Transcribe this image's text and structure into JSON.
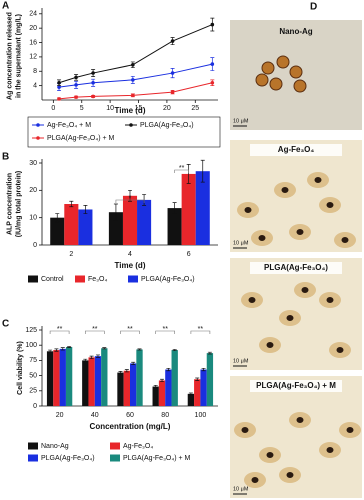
{
  "chart_data": [
    {
      "type": "line",
      "label": "A",
      "ylabel": [
        "Ag concentration released",
        "in the supernatant (mg/L)"
      ],
      "xlabel": "Time (d)",
      "x": [
        1,
        4,
        7,
        14,
        21,
        28
      ],
      "xlim": [
        -2,
        29
      ],
      "xticks": [
        0,
        5,
        10,
        15,
        20,
        25
      ],
      "ylim": [
        0,
        24.5
      ],
      "yticks": [
        4,
        8,
        12,
        16,
        20,
        24
      ],
      "series": [
        {
          "name": "Ag-Fe₃O₄ + M",
          "color": "#1a2fe0",
          "values": [
            3.6,
            4.2,
            4.8,
            5.6,
            7.5,
            10
          ],
          "errors": [
            1,
            1,
            1,
            1,
            1.3,
            1.8
          ]
        },
        {
          "name": "PLGA(Ag-Fe₃O₄)",
          "color": "#111111",
          "values": [
            4.8,
            6.3,
            7.5,
            9.8,
            16.4,
            21
          ],
          "errors": [
            0.8,
            0.8,
            1,
            0.8,
            1,
            1.8
          ]
        },
        {
          "name": "PLGA(Ag-Fe₃O₄) + M",
          "color": "#e8262b",
          "values": [
            0.3,
            0.8,
            1,
            1.3,
            2.2,
            4.8
          ],
          "errors": [
            0.3,
            0.3,
            0.3,
            0.4,
            0.5,
            0.8
          ]
        }
      ]
    },
    {
      "type": "bar",
      "label": "B",
      "ylabel": [
        "ALP concentration",
        "(IU/mg total protein)"
      ],
      "xlabel": "Time (d)",
      "categories": [
        "2",
        "4",
        "6"
      ],
      "ylim": [
        0,
        30
      ],
      "yticks": [
        0,
        10,
        20,
        30
      ],
      "annotations": [
        "*",
        "**"
      ],
      "series": [
        {
          "name": "Control",
          "color": "#111111",
          "values": [
            10,
            12,
            13.5
          ],
          "errors": [
            1.5,
            3,
            2
          ]
        },
        {
          "name": "Fe₃O₄",
          "color": "#e8262b",
          "values": [
            15,
            18,
            26
          ],
          "errors": [
            1,
            2,
            3.5
          ]
        },
        {
          "name": "PLGA(Ag-Fe₃O₄)",
          "color": "#1a2fe0",
          "values": [
            13,
            16.5,
            27
          ],
          "errors": [
            1.5,
            2,
            4
          ]
        }
      ]
    },
    {
      "type": "bar",
      "label": "C",
      "ylabel": [
        "Cell viability (%)"
      ],
      "xlabel": "Concentration (mg/L)",
      "categories": [
        "20",
        "40",
        "60",
        "80",
        "100"
      ],
      "ylim": [
        0,
        125
      ],
      "yticks": [
        0,
        25,
        50,
        75,
        100,
        125
      ],
      "annotations": [
        "**",
        "**",
        "**",
        "**",
        "**"
      ],
      "series": [
        {
          "name": "Nano-Ag",
          "color": "#111111",
          "values": [
            90,
            75,
            55,
            32,
            20
          ],
          "errors": [
            2,
            2,
            2,
            2,
            1.5
          ]
        },
        {
          "name": "Ag-Fe₃O₄",
          "color": "#e8262b",
          "values": [
            92,
            80,
            58,
            42,
            44
          ],
          "errors": [
            2,
            2,
            2,
            2,
            2
          ]
        },
        {
          "name": "PLGA(Ag-Fe₃O₄)",
          "color": "#1a2fe0",
          "values": [
            94,
            82,
            70,
            60,
            60
          ],
          "errors": [
            2,
            2,
            2,
            2,
            2
          ]
        },
        {
          "name": "PLGA(Ag-Fe₃O₄) + M",
          "color": "#1a8a7e",
          "values": [
            97,
            95,
            93,
            92,
            87
          ],
          "errors": [
            1,
            1,
            1,
            1,
            1.5
          ]
        }
      ]
    }
  ],
  "panel_d": {
    "label": "D",
    "images": [
      {
        "title": "Nano-Ag",
        "scale": "10 μM"
      },
      {
        "title": "Ag-Fe₃O₄",
        "scale": "10 μM"
      },
      {
        "title": "PLGA(Ag-Fe₃O₄)",
        "scale": "10 μM"
      },
      {
        "title": "PLGA(Ag-Fe₃O₄) + M",
        "scale": "10 μM"
      }
    ]
  }
}
